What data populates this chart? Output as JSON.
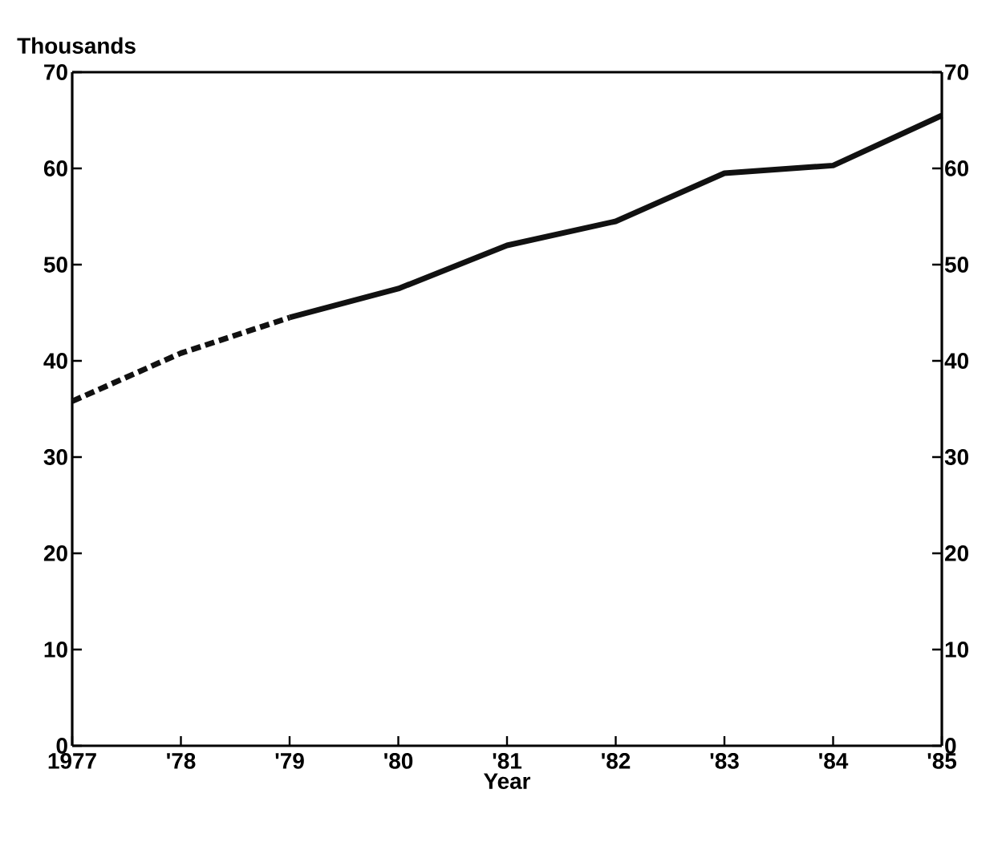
{
  "chart_data": {
    "type": "line",
    "ylabel": "Thousands",
    "xlabel": "Year",
    "series": [
      {
        "color": "#111111",
        "line_style": "dashed",
        "x": [
          1977,
          1978,
          1979
        ],
        "values": [
          35.8,
          40.8,
          44.5
        ]
      },
      {
        "color": "#111111",
        "line_style": "solid",
        "x": [
          1979,
          1980,
          1981,
          1982,
          1983,
          1984,
          1985
        ],
        "values": [
          44.5,
          47.5,
          52,
          54.5,
          59.5,
          60.3,
          65.5
        ]
      }
    ],
    "xlim": [
      1977,
      1985
    ],
    "xticks": [
      {
        "value": 1977,
        "label": "1977"
      },
      {
        "value": 1978,
        "label": "'78"
      },
      {
        "value": 1979,
        "label": "'79"
      },
      {
        "value": 1980,
        "label": "'80"
      },
      {
        "value": 1981,
        "label": "'81"
      },
      {
        "value": 1982,
        "label": "'82"
      },
      {
        "value": 1983,
        "label": "'83"
      },
      {
        "value": 1984,
        "label": "'84"
      },
      {
        "value": 1985,
        "label": "'85"
      }
    ],
    "ylim": [
      0,
      70
    ],
    "yticks": [
      0,
      10,
      20,
      30,
      40,
      50,
      60,
      70
    ],
    "y2lim": [
      0,
      70
    ],
    "y2ticks": [
      0,
      10,
      20,
      30,
      40,
      50,
      60,
      70
    ],
    "grid": false,
    "marker": "none"
  }
}
